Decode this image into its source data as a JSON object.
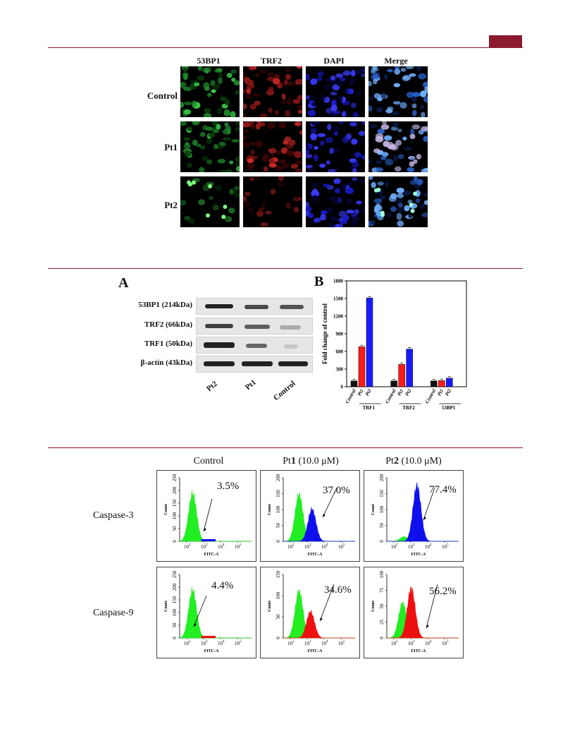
{
  "figure1": {
    "columns": [
      "53BP1",
      "TRF2",
      "DAPI",
      "Merge"
    ],
    "rows": [
      "Control",
      "Pt1",
      "Pt2"
    ]
  },
  "figure2": {
    "panel_a": {
      "letter": "A",
      "blot_labels": [
        "53BP1 (214kDa)",
        "TRF2 (66kDa)",
        "TRF1 (50kDa)",
        "β-actin (43kDa)"
      ],
      "lanes": [
        "Pt2",
        "Pt1",
        "Control"
      ]
    },
    "panel_b": {
      "letter": "B",
      "ylabel": "Fold change of control"
    }
  },
  "chart_data": {
    "type": "bar",
    "ylabel": "Fold change of control",
    "ylim": [
      0,
      1800
    ],
    "yticks": [
      "0",
      "300",
      "600",
      "900",
      "1200",
      "1500",
      "1800"
    ],
    "groups": [
      "TRF1",
      "TRF2",
      "53BP1"
    ],
    "categories": [
      "Control",
      "Pt1",
      "Pt2"
    ],
    "series": [
      {
        "group": "TRF1",
        "values": [
          100,
          680,
          1510
        ]
      },
      {
        "group": "TRF2",
        "values": [
          100,
          380,
          640
        ]
      },
      {
        "group": "53BP1",
        "values": [
          100,
          105,
          145
        ]
      }
    ],
    "colors": [
      "#111111",
      "#ff1a1a",
      "#1a1aff"
    ]
  },
  "figure3": {
    "col_prefix": [
      "Control",
      "Pt",
      "Pt"
    ],
    "col_bold": [
      "",
      "1",
      "2"
    ],
    "col_suffix": [
      "",
      " (10.0 μM)",
      " (10.0 μM)"
    ],
    "rows": [
      "Caspase-3",
      "Caspase-9"
    ],
    "xlabel": "FITC-A",
    "ylabel": "Count",
    "percentages": [
      [
        "3.5%",
        "37.0%",
        "77.4%"
      ],
      [
        "4.4%",
        "34.6%",
        "56.2%"
      ]
    ],
    "colors": {
      "live": "#22ee22",
      "casp3": "#1010ee",
      "casp9": "#ee1010"
    }
  }
}
